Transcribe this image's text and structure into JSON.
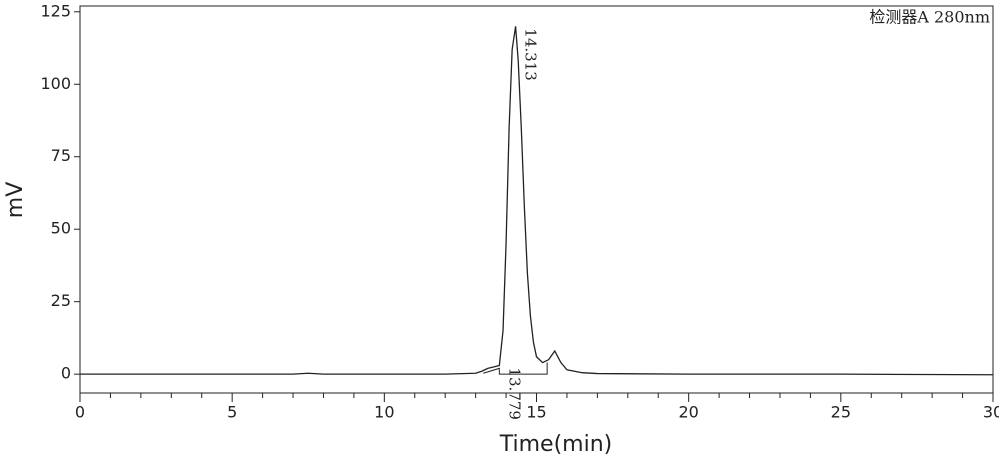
{
  "chart_data": {
    "type": "line",
    "detector": "检测器A 280nm",
    "xlabel": "Time(min)",
    "ylabel": "mV",
    "xlim": [
      0,
      30
    ],
    "ylim": [
      -6.5,
      127
    ],
    "xticks": [
      0,
      5,
      10,
      15,
      20,
      25,
      30
    ],
    "yticks": [
      0,
      25,
      50,
      75,
      100,
      125
    ],
    "x_minor_ticks": [
      1,
      2,
      3,
      4,
      6,
      7,
      8,
      9,
      11,
      12,
      13,
      14,
      16,
      17,
      18,
      19,
      21,
      22,
      23,
      24,
      26,
      27,
      28,
      29
    ],
    "color": "#222222",
    "x": [
      0,
      5,
      7,
      7.5,
      8,
      10,
      12,
      13,
      13.2,
      13.4,
      13.6,
      13.779,
      13.9,
      14.0,
      14.1,
      14.2,
      14.313,
      14.4,
      14.5,
      14.6,
      14.7,
      14.8,
      14.9,
      15.0,
      15.2,
      15.4,
      15.6,
      15.8,
      16.0,
      16.5,
      17,
      20,
      25,
      30
    ],
    "values": [
      0,
      0,
      0,
      0.3,
      0,
      0,
      0,
      0.3,
      1,
      2,
      2.5,
      3,
      15,
      45,
      85,
      112,
      120,
      108,
      85,
      58,
      35,
      20,
      11,
      6,
      4,
      5,
      8,
      4,
      1.5,
      0.5,
      0.2,
      0,
      0,
      -0.2
    ],
    "baseline": {
      "x": [
        13.25,
        13.779,
        13.779,
        15.35,
        15.35
      ],
      "y": [
        0.3,
        2,
        0,
        0,
        4
      ]
    },
    "annotations": [
      {
        "x": 14.313,
        "y": 120,
        "text": "14.313"
      },
      {
        "x": 13.779,
        "y": 3,
        "text": "13.779"
      }
    ]
  }
}
